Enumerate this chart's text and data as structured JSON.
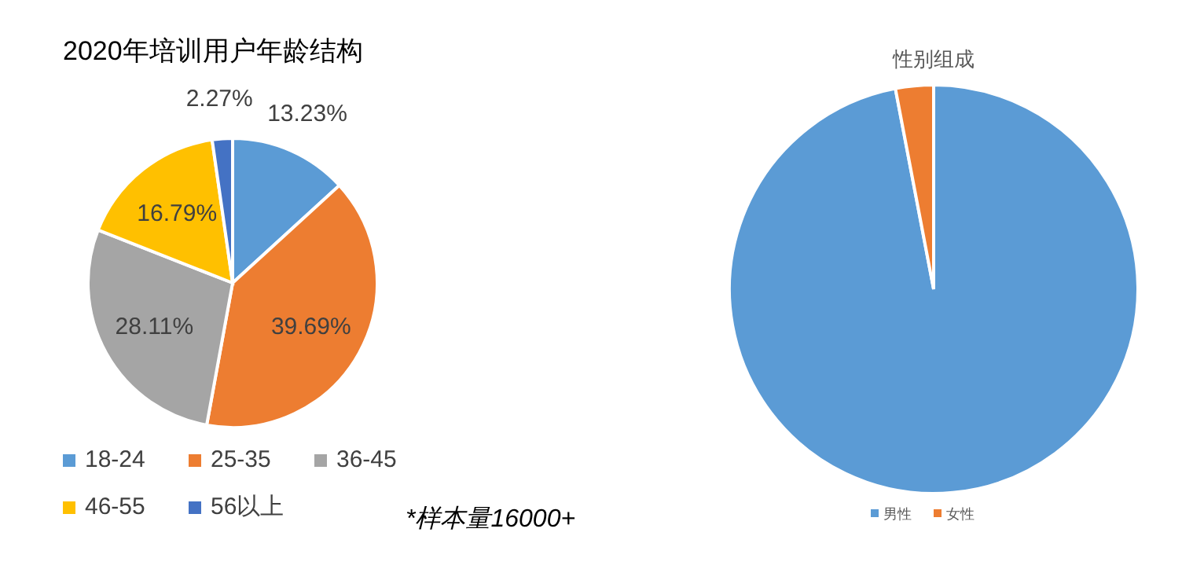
{
  "chart_data": [
    {
      "type": "pie",
      "title": "2020年培训用户年龄结构",
      "categories": [
        "18-24",
        "25-35",
        "36-45",
        "46-55",
        "56以上"
      ],
      "values": [
        13.23,
        39.69,
        28.11,
        16.79,
        2.27
      ],
      "colors": [
        "#5b9bd5",
        "#ed7d31",
        "#a5a5a5",
        "#ffc000",
        "#4472c4"
      ],
      "value_labels": [
        "13.23%",
        "39.69%",
        "28.11%",
        "16.79%",
        "2.27%"
      ],
      "legend": "bottom",
      "annotations": [
        "*样本量16000+"
      ]
    },
    {
      "type": "pie",
      "title": "性别组成",
      "categories": [
        "男性",
        "女性"
      ],
      "values": [
        97,
        3
      ],
      "colors": [
        "#5b9bd5",
        "#ed7d31"
      ],
      "legend": "bottom"
    }
  ]
}
